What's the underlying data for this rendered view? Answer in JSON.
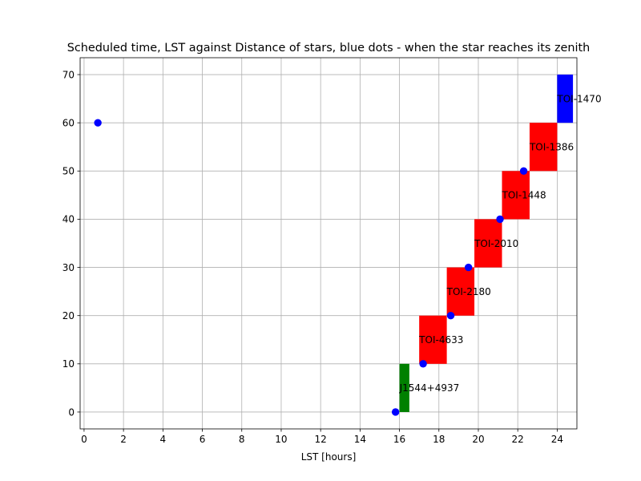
{
  "chart_data": {
    "type": "bar",
    "title": "Scheduled time, LST against Distance of stars, blue dots - when the star reaches its zenith",
    "xlabel": "LST [hours]",
    "ylabel": "",
    "xlim": [
      -0.2,
      25.0
    ],
    "ylim": [
      -3.5,
      73.5
    ],
    "xticks": [
      0,
      2,
      4,
      6,
      8,
      10,
      12,
      14,
      16,
      18,
      20,
      22,
      24
    ],
    "yticks": [
      0,
      10,
      20,
      30,
      40,
      50,
      60,
      70
    ],
    "grid": true,
    "bars": [
      {
        "label": "J1544+4937",
        "x_start": 16.0,
        "x_end": 16.5,
        "y_bottom": 0,
        "y_top": 10,
        "color": "#008000"
      },
      {
        "label": "TOI-4633",
        "x_start": 17.0,
        "x_end": 18.4,
        "y_bottom": 10,
        "y_top": 20,
        "color": "#ff0000"
      },
      {
        "label": "TOI-2180",
        "x_start": 18.4,
        "x_end": 19.8,
        "y_bottom": 20,
        "y_top": 30,
        "color": "#ff0000"
      },
      {
        "label": "TOI-2010",
        "x_start": 19.8,
        "x_end": 21.2,
        "y_bottom": 30,
        "y_top": 40,
        "color": "#ff0000"
      },
      {
        "label": "TOI-1448",
        "x_start": 21.2,
        "x_end": 22.6,
        "y_bottom": 40,
        "y_top": 50,
        "color": "#ff0000"
      },
      {
        "label": "TOI-1386",
        "x_start": 22.6,
        "x_end": 24.0,
        "y_bottom": 50,
        "y_top": 60,
        "color": "#ff0000"
      },
      {
        "label": "TOI-1470",
        "x_start": 24.0,
        "x_end": 24.8,
        "y_bottom": 60,
        "y_top": 70,
        "color": "#0000ff"
      }
    ],
    "points": [
      {
        "x": 15.8,
        "y": 0
      },
      {
        "x": 17.2,
        "y": 10
      },
      {
        "x": 18.6,
        "y": 20
      },
      {
        "x": 19.5,
        "y": 30
      },
      {
        "x": 21.1,
        "y": 40
      },
      {
        "x": 22.3,
        "y": 50
      },
      {
        "x": 0.7,
        "y": 60
      }
    ],
    "point_color": "#0000ff"
  }
}
